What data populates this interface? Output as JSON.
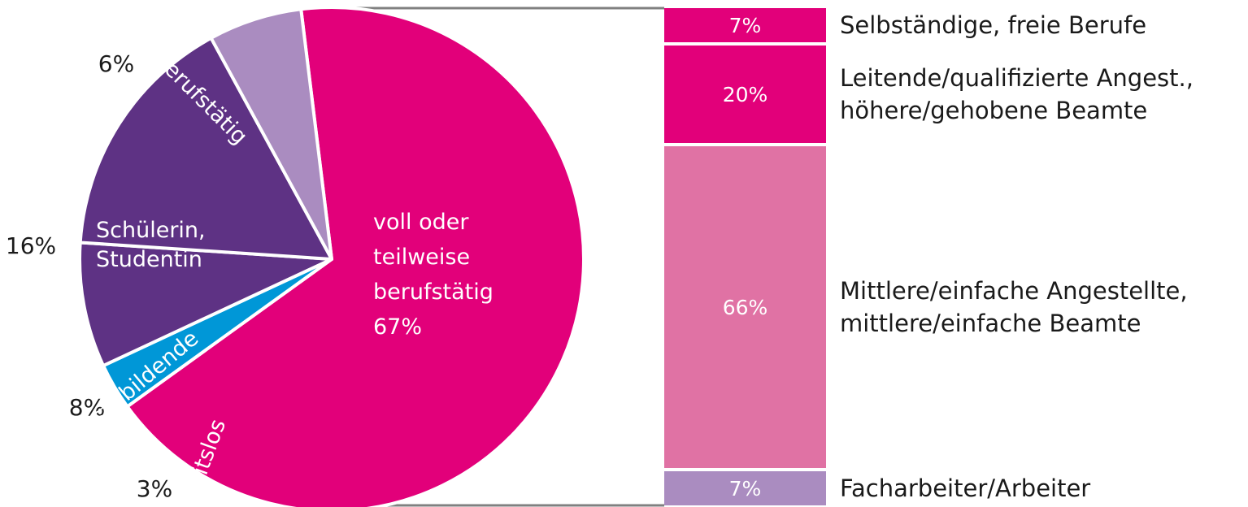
{
  "colors": {
    "magenta": "#E2007A",
    "light_pink": "#E072A4",
    "purple": "#5E3284",
    "lavender": "#AA8CC0",
    "cyan": "#0097D7",
    "connector": "#808080",
    "text_dark": "#1a1a1a"
  },
  "chart_data": [
    {
      "type": "pie",
      "slices": [
        {
          "key": "voll",
          "label_lines": [
            "voll oder",
            "teilweise",
            "berufstätig"
          ],
          "value": 67,
          "value_text": "67%",
          "color": "#E2007A",
          "label_inside": true
        },
        {
          "key": "arbeitslos",
          "label_lines": [
            "arbeitslos"
          ],
          "value": 3,
          "value_text": "3%",
          "color": "#0097D7",
          "label_inside": true
        },
        {
          "key": "azubi",
          "label_lines": [
            "Auszubildende"
          ],
          "value": 8,
          "value_text": "8%",
          "color": "#5E3284",
          "label_inside": true
        },
        {
          "key": "schueler",
          "label_lines": [
            "Schülerin,",
            "Studentin"
          ],
          "value": 16,
          "value_text": "16%",
          "color": "#5E3284",
          "label_inside": true
        },
        {
          "key": "nicht",
          "label_lines": [
            "nicht berufstätig"
          ],
          "value": 6,
          "value_text": "6%",
          "color": "#AA8CC0",
          "label_inside": true
        }
      ]
    },
    {
      "type": "bar",
      "stacked": true,
      "breakdown_of": "voll oder teilweise berufstätig",
      "segments": [
        {
          "key": "selbst",
          "value": 7,
          "value_text": "7%",
          "label_lines": [
            "Selbständige, freie Berufe"
          ],
          "color": "#E2007A"
        },
        {
          "key": "leitend",
          "value": 20,
          "value_text": "20%",
          "label_lines": [
            "Leitende/qualifizierte Angest.,",
            "höhere/gehobene Beamte"
          ],
          "color": "#E2007A"
        },
        {
          "key": "mittlere",
          "value": 66,
          "value_text": "66%",
          "label_lines": [
            "Mittlere/einfache Angestellte,",
            "mittlere/einfache Beamte"
          ],
          "color": "#E072A4"
        },
        {
          "key": "fach",
          "value": 7,
          "value_text": "7%",
          "label_lines": [
            "Facharbeiter/Arbeiter"
          ],
          "color": "#AA8CC0"
        }
      ]
    }
  ]
}
